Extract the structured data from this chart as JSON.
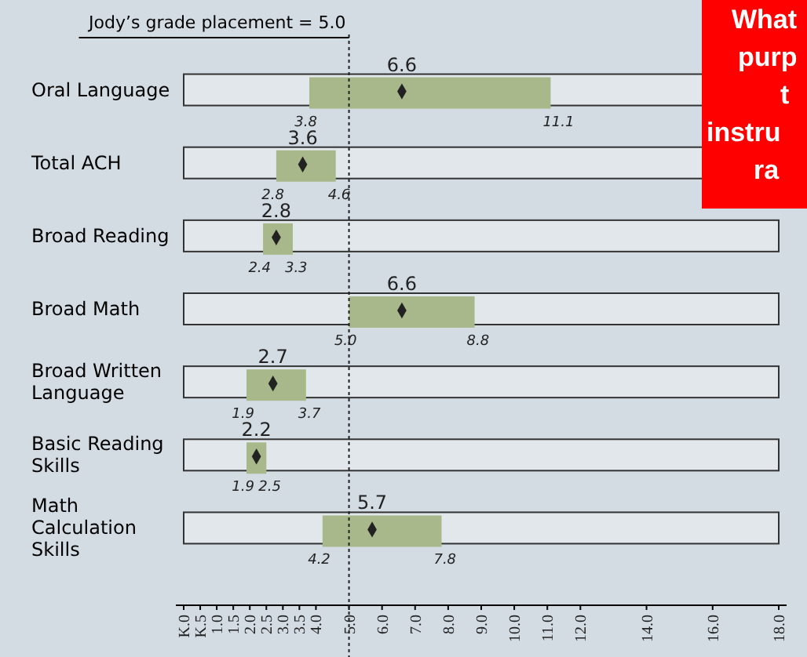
{
  "chart_data": {
    "type": "bar",
    "orientation": "horizontal",
    "categories": [
      "Oral Language",
      "Total ACH",
      "Broad Reading",
      "Broad Math",
      "Broad Written Language",
      "Basic Reading Skills",
      "Math Calculation Skills"
    ],
    "series": [
      {
        "color": "#a8b88a",
        "base": [
          3.8,
          2.8,
          2.4,
          5.0,
          1.9,
          1.9,
          4.2
        ],
        "values": [
          7.3,
          1.8,
          0.9,
          3.8,
          1.8,
          0.6,
          3.6
        ]
      },
      {
        "type": "scatter",
        "marker": "diamond",
        "color": "#222222",
        "values": [
          6.6,
          3.6,
          2.8,
          6.6,
          2.7,
          2.2,
          5.7
        ],
        "value_labels": [
          "6.6",
          "3.6",
          "2.8",
          "6.6",
          "2.7",
          "2.2",
          "5.7"
        ]
      }
    ],
    "xlim": [
      0,
      18
    ],
    "xticks": [
      {
        "value": 0,
        "label": "K.0"
      },
      {
        "value": 0.5,
        "label": "K.5"
      },
      {
        "value": 1,
        "label": "1.0"
      },
      {
        "value": 1.5,
        "label": "1.5"
      },
      {
        "value": 2,
        "label": "2.0"
      },
      {
        "value": 2.5,
        "label": "2.5"
      },
      {
        "value": 3,
        "label": "3.0"
      },
      {
        "value": 3.5,
        "label": "3.5"
      },
      {
        "value": 4,
        "label": "4.0"
      },
      {
        "value": 5,
        "label": "5.0"
      },
      {
        "value": 6,
        "label": "6.0"
      },
      {
        "value": 7,
        "label": "7.0"
      },
      {
        "value": 8,
        "label": "8.0"
      },
      {
        "value": 9,
        "label": "9.0"
      },
      {
        "value": 10,
        "label": "10.0"
      },
      {
        "value": 11,
        "label": "11.0"
      },
      {
        "value": 12,
        "label": "12.0"
      },
      {
        "value": 14,
        "label": "14.0"
      },
      {
        "value": 16,
        "label": "16.0"
      },
      {
        "value": 18,
        "label": "18.0"
      }
    ],
    "ref_lines": [
      {
        "axis": "x",
        "value": 5.0,
        "label": "Jody’s grade placement = 5.0",
        "line_style": "dotted"
      }
    ],
    "annotations": [
      {
        "text": "3.8",
        "x": 3.8,
        "y": "Oral Language"
      },
      {
        "text": "11.1",
        "x": 11.1,
        "y": "Oral Language"
      },
      {
        "text": "2.8",
        "x": 2.8,
        "y": "Total ACH"
      },
      {
        "text": "4.6",
        "x": 4.6,
        "y": "Total ACH"
      },
      {
        "text": "2.4",
        "x": 2.4,
        "y": "Broad Reading"
      },
      {
        "text": "3.3",
        "x": 3.3,
        "y": "Broad Reading"
      },
      {
        "text": "5.0",
        "x": 5.0,
        "y": "Broad Math"
      },
      {
        "text": "8.8",
        "x": 8.8,
        "y": "Broad Math"
      },
      {
        "text": "1.9",
        "x": 1.9,
        "y": "Broad Written Language"
      },
      {
        "text": "3.7",
        "x": 3.7,
        "y": "Broad Written Language"
      },
      {
        "text": "1.9",
        "x": 1.9,
        "y": "Basic Reading Skills"
      },
      {
        "text": "2.5",
        "x": 2.5,
        "y": "Basic Reading Skills"
      },
      {
        "text": "4.2",
        "x": 4.2,
        "y": "Math Calculation Skills"
      },
      {
        "text": "7.8",
        "x": 7.8,
        "y": "Math Calculation Skills"
      },
      "What\npurp\nt\ninstru\nra"
    ]
  }
}
